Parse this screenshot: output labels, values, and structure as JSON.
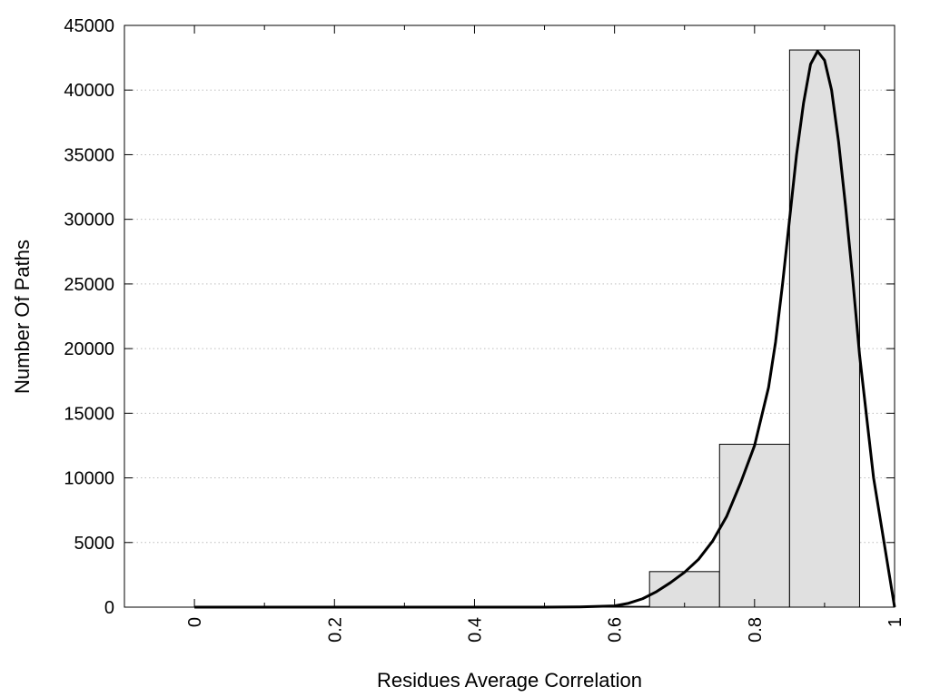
{
  "chart_data": {
    "type": "bar",
    "title": "",
    "xlabel": "Residues Average Correlation",
    "ylabel": "Number Of Paths",
    "xlim": [
      -0.1,
      1.0
    ],
    "ylim": [
      0,
      45000
    ],
    "grid": "horizontal dotted",
    "x_ticks": [
      "0",
      "0.2",
      "0.4",
      "0.6",
      "0.8",
      "1"
    ],
    "x_tick_values": [
      0,
      0.2,
      0.4,
      0.6,
      0.8,
      1.0
    ],
    "x_minor_tick_values": [
      0.1,
      0.3,
      0.5,
      0.7,
      0.9
    ],
    "y_ticks": [
      "0",
      "5000",
      "10000",
      "15000",
      "20000",
      "25000",
      "30000",
      "35000",
      "40000",
      "45000"
    ],
    "y_tick_values": [
      0,
      5000,
      10000,
      15000,
      20000,
      25000,
      30000,
      35000,
      40000,
      45000
    ],
    "bin_width": 0.1,
    "bins": [
      {
        "center": 0.0,
        "value": 0
      },
      {
        "center": 0.1,
        "value": 0
      },
      {
        "center": 0.2,
        "value": 0
      },
      {
        "center": 0.3,
        "value": 0
      },
      {
        "center": 0.4,
        "value": 0
      },
      {
        "center": 0.5,
        "value": 0
      },
      {
        "center": 0.6,
        "value": 60
      },
      {
        "center": 0.7,
        "value": 2750
      },
      {
        "center": 0.8,
        "value": 12600
      },
      {
        "center": 0.9,
        "value": 43100
      }
    ],
    "fit_curve": {
      "x": [
        0.0,
        0.1,
        0.2,
        0.3,
        0.4,
        0.5,
        0.55,
        0.6,
        0.62,
        0.64,
        0.66,
        0.68,
        0.7,
        0.72,
        0.74,
        0.76,
        0.78,
        0.8,
        0.82,
        0.83,
        0.84,
        0.85,
        0.86,
        0.87,
        0.88,
        0.89,
        0.9,
        0.91,
        0.92,
        0.93,
        0.94,
        0.95,
        0.97,
        1.0
      ],
      "y": [
        0,
        0,
        0,
        0,
        0,
        0,
        20,
        100,
        300,
        650,
        1200,
        1900,
        2700,
        3700,
        5100,
        7000,
        9600,
        12500,
        17000,
        20500,
        25000,
        30000,
        35000,
        39000,
        42000,
        43000,
        42300,
        40000,
        36000,
        31000,
        25500,
        19500,
        10000,
        0
      ]
    }
  }
}
